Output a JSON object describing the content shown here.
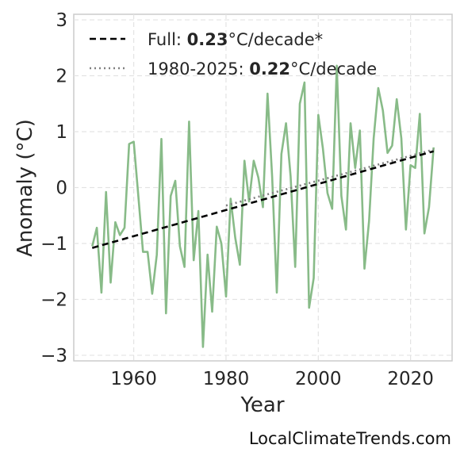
{
  "chart_data": {
    "type": "line",
    "xlabel": "Year",
    "ylabel": "Anomaly (°C)",
    "xlim": [
      1947,
      2029
    ],
    "ylim": [
      -3.1,
      3.1
    ],
    "xticks": [
      1960,
      1980,
      2000,
      2020
    ],
    "yticks": [
      -3,
      -2,
      -1,
      0,
      1,
      2,
      3
    ],
    "grid": true,
    "legend_position": "top-left",
    "colors": {
      "series": "#88bb88",
      "full_trend": "#000000",
      "recent_trend": "#808080"
    },
    "series": [
      {
        "name": "",
        "x": [
          1951,
          1952,
          1953,
          1954,
          1955,
          1956,
          1957,
          1958,
          1959,
          1960,
          1961,
          1962,
          1963,
          1964,
          1965,
          1966,
          1967,
          1968,
          1969,
          1970,
          1971,
          1972,
          1973,
          1974,
          1975,
          1976,
          1977,
          1978,
          1979,
          1980,
          1981,
          1982,
          1983,
          1984,
          1985,
          1986,
          1987,
          1988,
          1989,
          1990,
          1991,
          1992,
          1993,
          1994,
          1995,
          1996,
          1997,
          1998,
          1999,
          2000,
          2001,
          2002,
          2003,
          2004,
          2005,
          2006,
          2007,
          2008,
          2009,
          2010,
          2011,
          2012,
          2013,
          2014,
          2015,
          2016,
          2017,
          2018,
          2019,
          2020,
          2021,
          2022,
          2023,
          2024,
          2025
        ],
        "y": [
          -1.05,
          -0.72,
          -1.88,
          -0.08,
          -1.7,
          -0.62,
          -0.85,
          -0.72,
          0.78,
          0.82,
          -0.15,
          -1.15,
          -1.15,
          -1.9,
          -1.2,
          0.87,
          -2.25,
          -0.15,
          0.12,
          -1.05,
          -1.42,
          1.18,
          -1.3,
          -0.42,
          -2.85,
          -1.2,
          -2.22,
          -0.7,
          -1.0,
          -1.95,
          -0.2,
          -0.9,
          -1.38,
          0.48,
          -0.25,
          0.48,
          0.18,
          -0.35,
          1.68,
          0.2,
          -1.88,
          0.6,
          1.15,
          0.2,
          -1.42,
          1.5,
          1.88,
          -2.15,
          -1.62,
          1.3,
          0.7,
          -0.1,
          -0.38,
          2.18,
          -0.15,
          -0.75,
          1.15,
          0.35,
          1.02,
          -1.45,
          -0.6,
          0.88,
          1.78,
          1.38,
          0.62,
          0.75,
          1.58,
          0.88,
          -0.75,
          0.4,
          0.35,
          1.32,
          -0.82,
          -0.35,
          0.72
        ]
      },
      {
        "name": "Full: 0.23°C/decade*",
        "x": [
          1951,
          2025
        ],
        "y": [
          -1.08,
          0.65
        ]
      },
      {
        "name": "1980-2025: 0.22°C/decade",
        "x": [
          1980,
          2025
        ],
        "y": [
          -0.32,
          0.68
        ]
      }
    ],
    "legend": [
      {
        "prefix": "Full: ",
        "value": "0.23",
        "suffix": "°C/decade*"
      },
      {
        "prefix": "1980-2025: ",
        "value": "0.22",
        "suffix": "°C/decade"
      }
    ]
  },
  "watermark": "LocalClimateTrends.com"
}
